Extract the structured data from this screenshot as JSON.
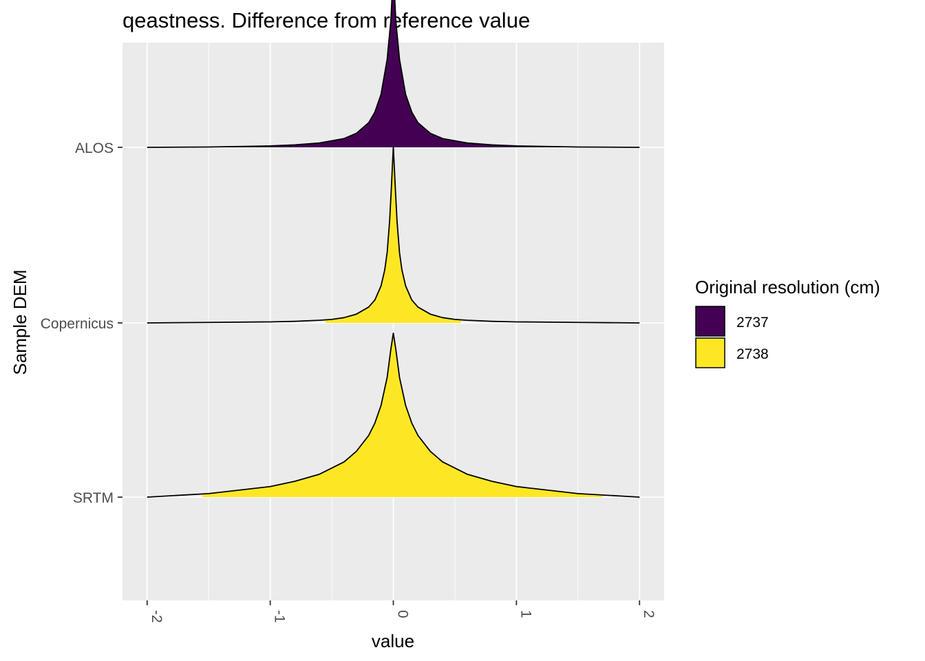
{
  "chart_data": {
    "type": "area",
    "title": "qeastness. Difference from reference value",
    "xlabel": "value",
    "ylabel": "Sample DEM",
    "xlim": [
      -2.2,
      2.2
    ],
    "x_ticks": [
      -2,
      -1,
      0,
      1,
      2
    ],
    "x_tick_labels": [
      "-2",
      "-1",
      "0",
      "1",
      "2"
    ],
    "categories": [
      "ALOS",
      "Copernicus",
      "SRTM"
    ],
    "grid": true,
    "legend": {
      "title": "Original resolution (cm)",
      "position": "right",
      "entries": [
        {
          "label": "2737",
          "color": "#440154"
        },
        {
          "label": "2738",
          "color": "#FDE725"
        }
      ]
    },
    "series": [
      {
        "category": "ALOS",
        "group": "2737",
        "color": "#440154",
        "x": [
          -2,
          -1.5,
          -1,
          -0.8,
          -0.6,
          -0.4,
          -0.3,
          -0.2,
          -0.15,
          -0.1,
          -0.05,
          -0.02,
          0,
          0.02,
          0.05,
          0.1,
          0.15,
          0.2,
          0.3,
          0.4,
          0.6,
          0.8,
          1,
          1.5,
          2
        ],
        "y": [
          0,
          0.002,
          0.008,
          0.014,
          0.025,
          0.05,
          0.08,
          0.14,
          0.2,
          0.3,
          0.5,
          0.72,
          1.0,
          0.72,
          0.5,
          0.3,
          0.2,
          0.14,
          0.08,
          0.05,
          0.025,
          0.014,
          0.008,
          0.002,
          0
        ],
        "fill_range": [
          -1.9,
          1.9
        ]
      },
      {
        "category": "Copernicus",
        "group": "2738",
        "color": "#FDE725",
        "x": [
          -2,
          -1.5,
          -1,
          -0.8,
          -0.6,
          -0.5,
          -0.4,
          -0.3,
          -0.2,
          -0.15,
          -0.1,
          -0.07,
          -0.05,
          -0.03,
          -0.015,
          0,
          0.015,
          0.03,
          0.05,
          0.07,
          0.1,
          0.15,
          0.2,
          0.3,
          0.4,
          0.5,
          0.6,
          0.8,
          1,
          1.5,
          2
        ],
        "y": [
          0,
          0.003,
          0.006,
          0.009,
          0.015,
          0.02,
          0.03,
          0.05,
          0.09,
          0.13,
          0.21,
          0.3,
          0.4,
          0.58,
          0.78,
          1.0,
          0.78,
          0.58,
          0.4,
          0.3,
          0.21,
          0.13,
          0.09,
          0.05,
          0.03,
          0.02,
          0.015,
          0.009,
          0.006,
          0.003,
          0
        ],
        "fill_range": [
          -0.55,
          0.55
        ]
      },
      {
        "category": "SRTM",
        "group": "2738",
        "color": "#FDE725",
        "x": [
          -2,
          -1.5,
          -1,
          -0.8,
          -0.6,
          -0.4,
          -0.3,
          -0.2,
          -0.15,
          -0.1,
          -0.05,
          -0.02,
          0,
          0.02,
          0.05,
          0.1,
          0.15,
          0.2,
          0.3,
          0.4,
          0.6,
          0.8,
          1,
          1.5,
          2
        ],
        "y": [
          0,
          0.02,
          0.06,
          0.09,
          0.13,
          0.2,
          0.26,
          0.35,
          0.42,
          0.52,
          0.68,
          0.84,
          0.93,
          0.84,
          0.68,
          0.52,
          0.42,
          0.35,
          0.26,
          0.2,
          0.13,
          0.09,
          0.06,
          0.02,
          0
        ],
        "fill_range": [
          -1.55,
          1.7
        ]
      }
    ]
  }
}
